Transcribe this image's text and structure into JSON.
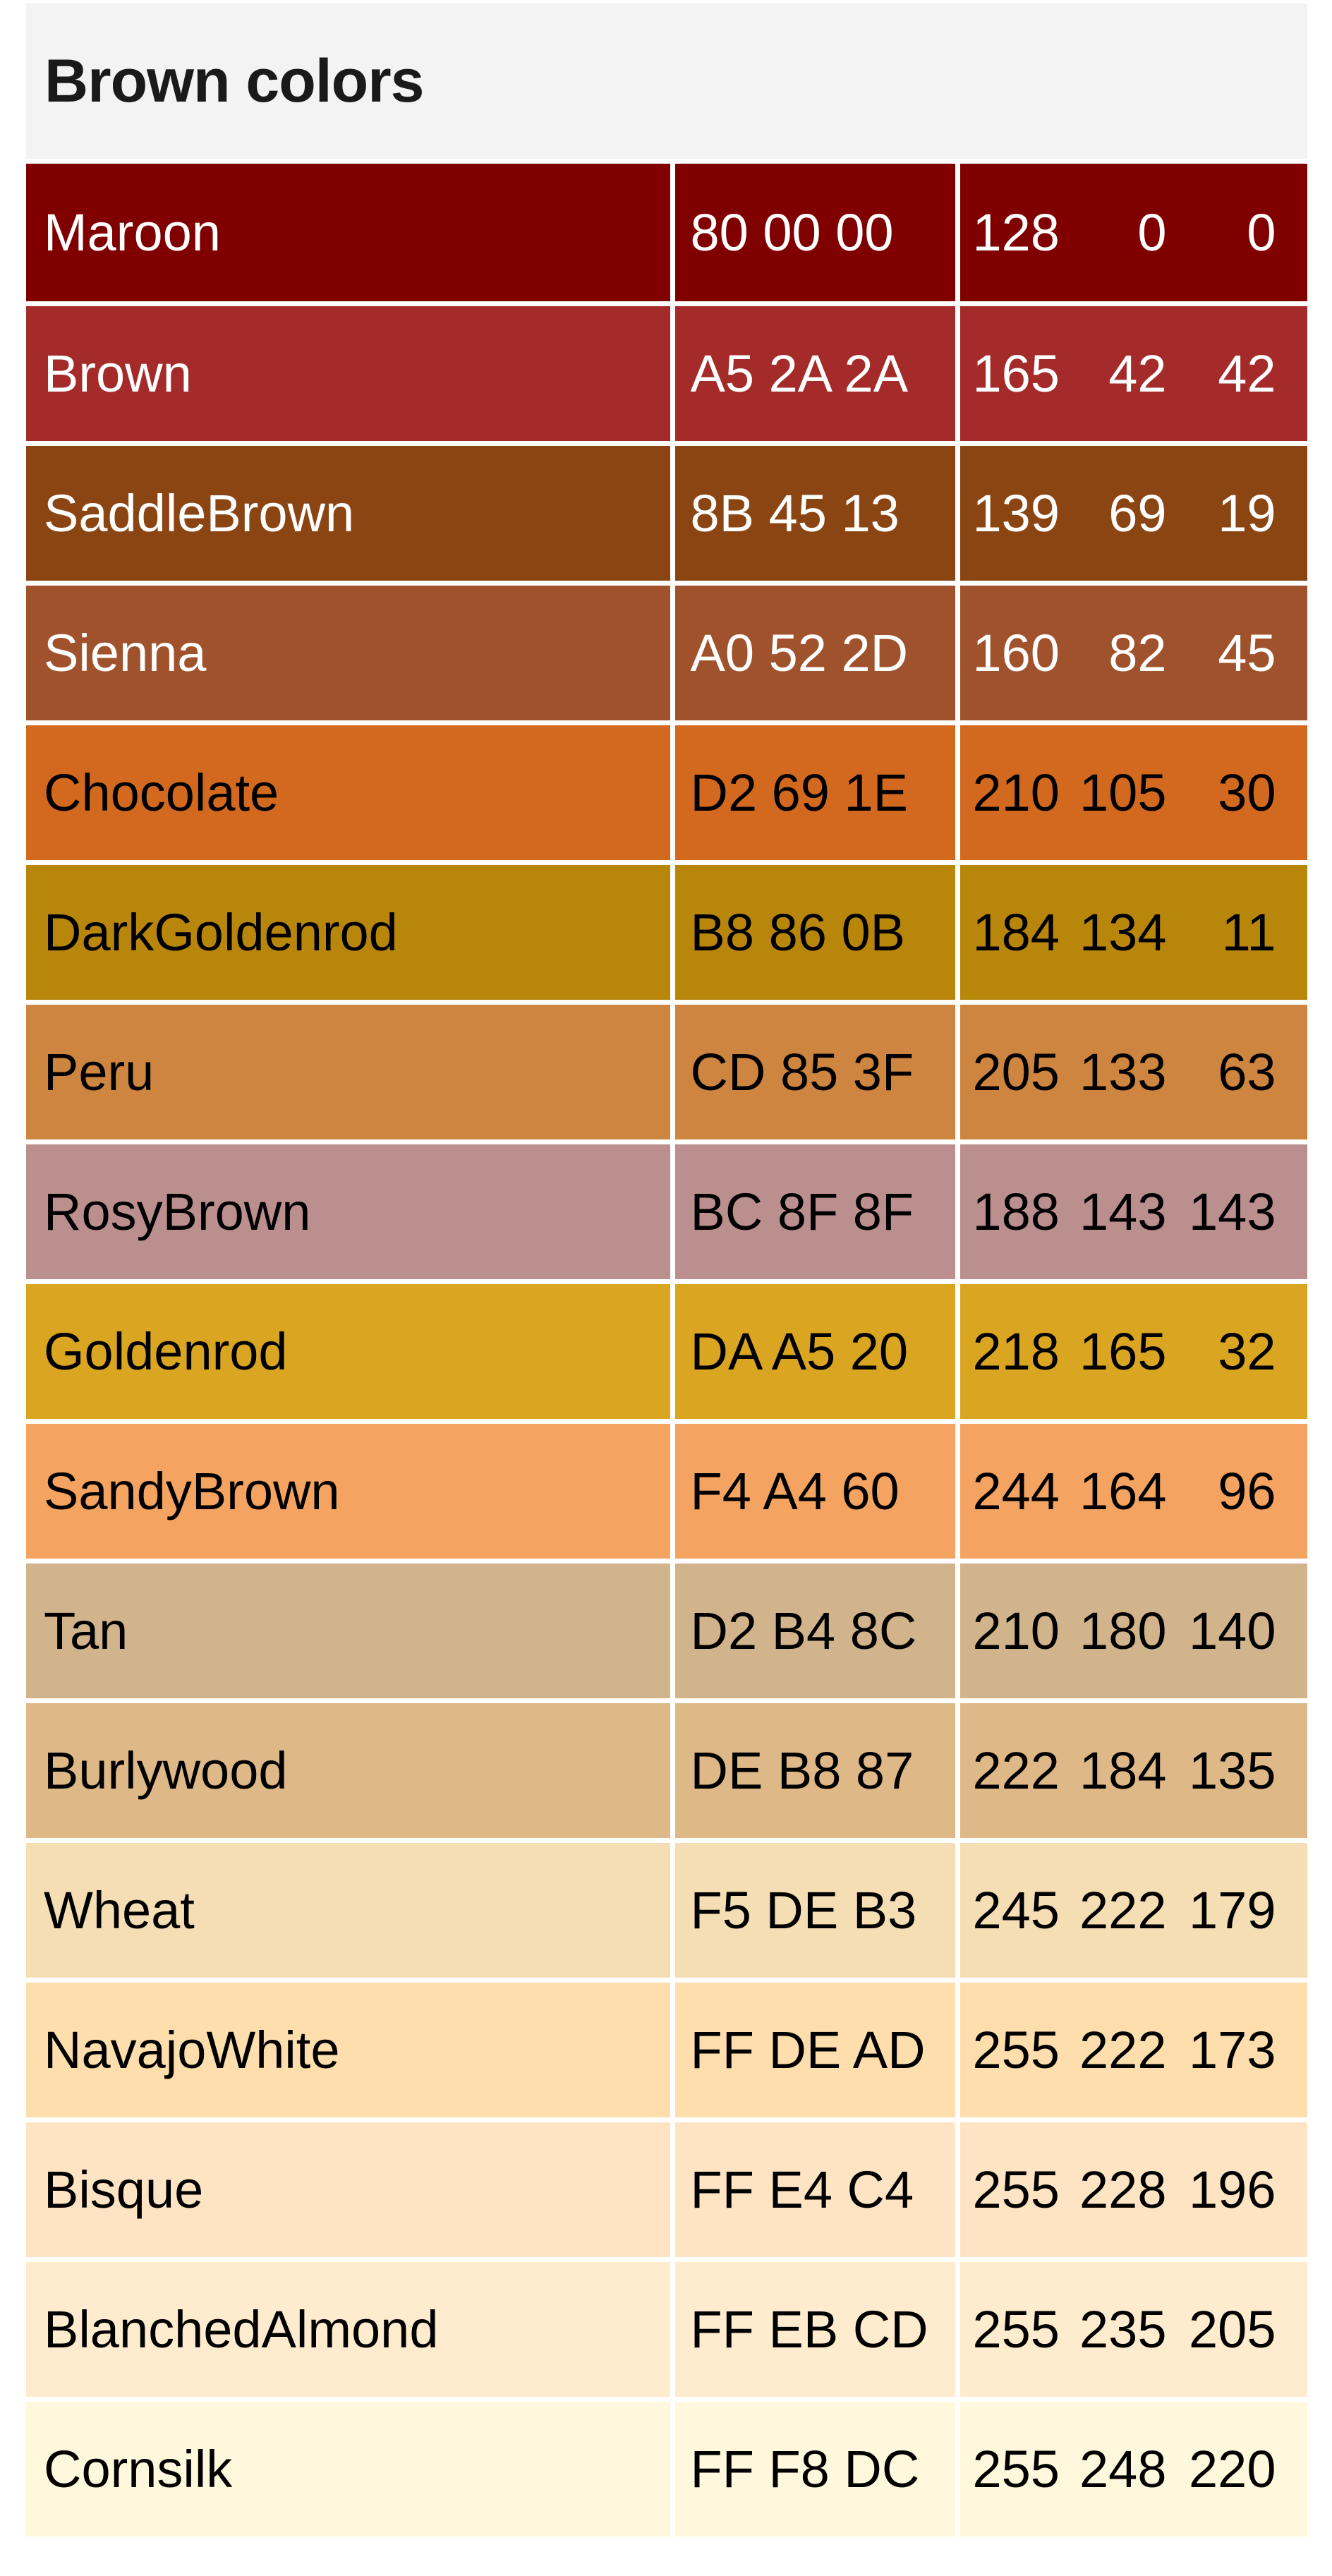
{
  "title": "Brown colors",
  "colors": [
    {
      "name": "Maroon",
      "hex": "80 00 00",
      "r": "128",
      "g": "0",
      "b": "0",
      "bg": "#800000",
      "fg": "#ffffff"
    },
    {
      "name": "Brown",
      "hex": "A5 2A 2A",
      "r": "165",
      "g": "42",
      "b": "42",
      "bg": "#A52A2A",
      "fg": "#ffffff"
    },
    {
      "name": "SaddleBrown",
      "hex": "8B 45 13",
      "r": "139",
      "g": "69",
      "b": "19",
      "bg": "#8B4513",
      "fg": "#ffffff"
    },
    {
      "name": "Sienna",
      "hex": "A0 52 2D",
      "r": "160",
      "g": "82",
      "b": "45",
      "bg": "#A0522D",
      "fg": "#ffffff"
    },
    {
      "name": "Chocolate",
      "hex": "D2 69 1E",
      "r": "210",
      "g": "105",
      "b": "30",
      "bg": "#D2691E",
      "fg": "#000000"
    },
    {
      "name": "DarkGoldenrod",
      "hex": "B8 86 0B",
      "r": "184",
      "g": "134",
      "b": "11",
      "bg": "#B8860B",
      "fg": "#000000"
    },
    {
      "name": "Peru",
      "hex": "CD 85 3F",
      "r": "205",
      "g": "133",
      "b": "63",
      "bg": "#CD853F",
      "fg": "#000000"
    },
    {
      "name": "RosyBrown",
      "hex": "BC 8F 8F",
      "r": "188",
      "g": "143",
      "b": "143",
      "bg": "#BC8F8F",
      "fg": "#000000"
    },
    {
      "name": "Goldenrod",
      "hex": "DA A5 20",
      "r": "218",
      "g": "165",
      "b": "32",
      "bg": "#DAA520",
      "fg": "#000000"
    },
    {
      "name": "SandyBrown",
      "hex": "F4 A4 60",
      "r": "244",
      "g": "164",
      "b": "96",
      "bg": "#F4A460",
      "fg": "#000000"
    },
    {
      "name": "Tan",
      "hex": "D2 B4 8C",
      "r": "210",
      "g": "180",
      "b": "140",
      "bg": "#D2B48C",
      "fg": "#000000"
    },
    {
      "name": "Burlywood",
      "hex": "DE B8 87",
      "r": "222",
      "g": "184",
      "b": "135",
      "bg": "#DEB887",
      "fg": "#000000"
    },
    {
      "name": "Wheat",
      "hex": "F5 DE B3",
      "r": "245",
      "g": "222",
      "b": "179",
      "bg": "#F5DEB3",
      "fg": "#000000"
    },
    {
      "name": "NavajoWhite",
      "hex": "FF DE AD",
      "r": "255",
      "g": "222",
      "b": "173",
      "bg": "#FFDEAD",
      "fg": "#000000"
    },
    {
      "name": "Bisque",
      "hex": "FF E4 C4",
      "r": "255",
      "g": "228",
      "b": "196",
      "bg": "#FFE4C4",
      "fg": "#000000"
    },
    {
      "name": "BlanchedAlmond",
      "hex": "FF EB CD",
      "r": "255",
      "g": "235",
      "b": "205",
      "bg": "#FFEBCD",
      "fg": "#000000"
    },
    {
      "name": "Cornsilk",
      "hex": "FF F8 DC",
      "r": "255",
      "g": "248",
      "b": "220",
      "bg": "#FFF8DC",
      "fg": "#000000"
    }
  ]
}
